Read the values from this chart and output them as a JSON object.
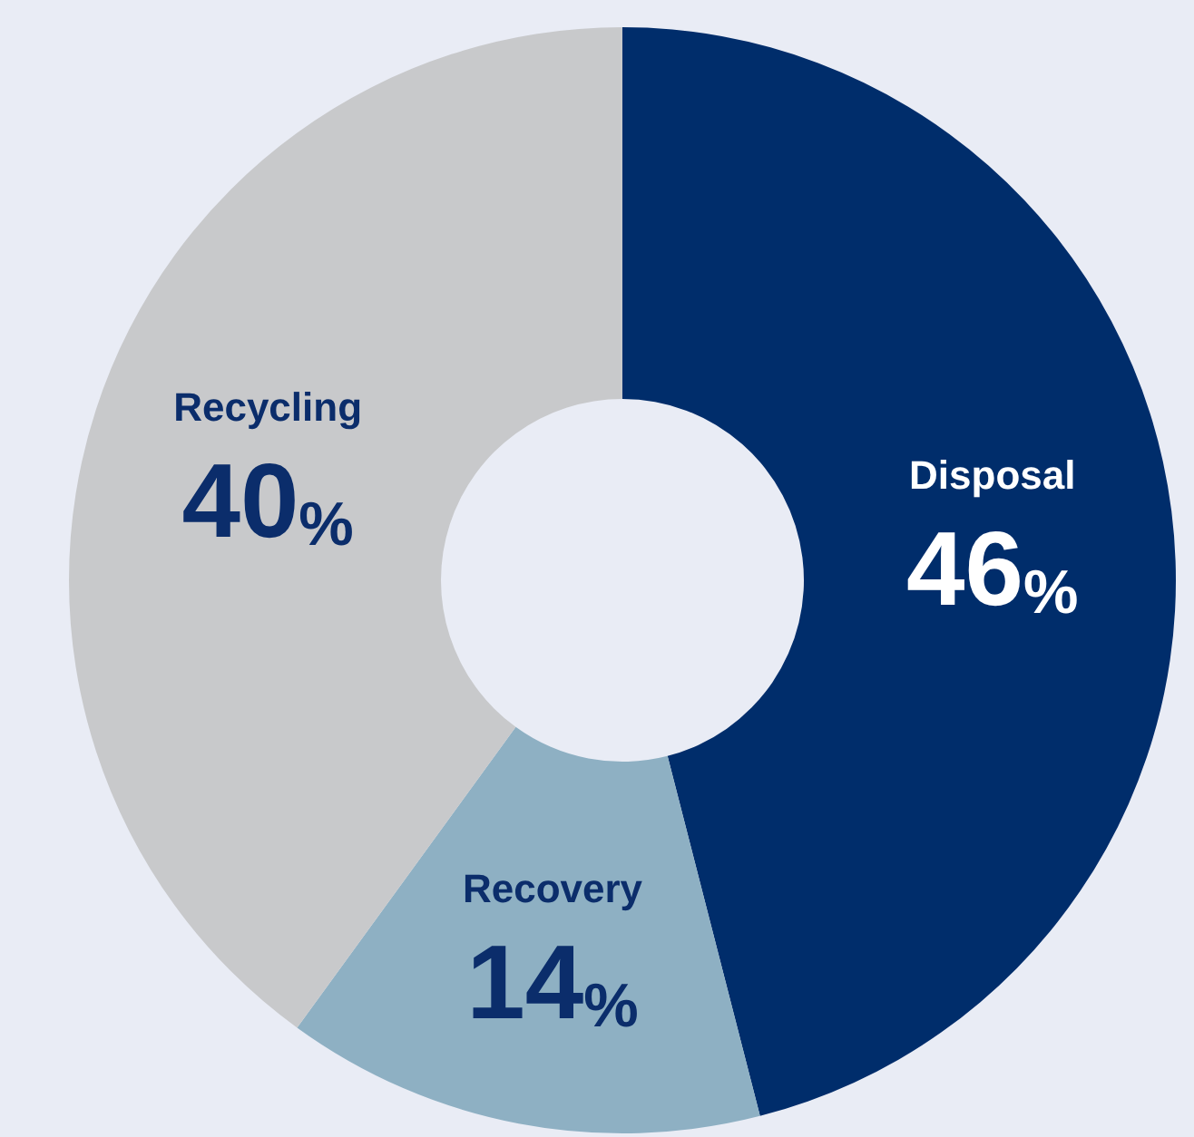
{
  "chart_data": {
    "type": "donut",
    "categories": [
      "Disposal",
      "Recovery",
      "Recycling"
    ],
    "values": [
      46,
      14,
      40
    ],
    "colors": [
      "#002d6b",
      "#8eb0c3",
      "#c8c9cb"
    ],
    "value_labels": [
      "46%",
      "14%",
      "40%"
    ],
    "legend": false
  }
}
